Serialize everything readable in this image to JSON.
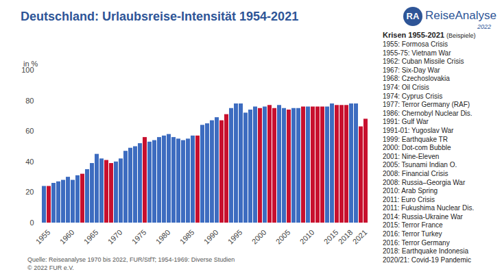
{
  "chart_data": {
    "type": "bar",
    "title": "Deutschland: Urlaubsreise-Intensität 1954-2021",
    "y_label": "in %",
    "categories": [
      null,
      "1955",
      null,
      null,
      null,
      null,
      "1960",
      null,
      null,
      null,
      null,
      "1965",
      null,
      null,
      null,
      null,
      "1970",
      null,
      null,
      null,
      null,
      "1975",
      null,
      null,
      null,
      null,
      "1980",
      null,
      null,
      null,
      null,
      "1985",
      null,
      null,
      null,
      null,
      "1990",
      null,
      null,
      null,
      null,
      "1995",
      null,
      null,
      null,
      null,
      "2000",
      null,
      null,
      null,
      null,
      "2005",
      null,
      null,
      null,
      null,
      "2010",
      null,
      null,
      null,
      null,
      "2015",
      null,
      null,
      "2018",
      null,
      null,
      "2021"
    ],
    "values": [
      24,
      24,
      26,
      27,
      28,
      30,
      28,
      31,
      32,
      35,
      39,
      45,
      42,
      41,
      39,
      40,
      42,
      47,
      49,
      50,
      52,
      56,
      53,
      54,
      56,
      57,
      58,
      56,
      55,
      54,
      55,
      57,
      57,
      64,
      65,
      67,
      69,
      67,
      71,
      75,
      78,
      78,
      72,
      74,
      76,
      75,
      76,
      77,
      75,
      77,
      75,
      74,
      75,
      75,
      76,
      76,
      76,
      76,
      76,
      76,
      78,
      77,
      77,
      77,
      78,
      78,
      63,
      68
    ],
    "colors": [
      "#3d6cc0",
      "#c8102e",
      "#3d6cc0",
      "#3d6cc0",
      "#3d6cc0",
      "#3d6cc0",
      "#3d6cc0",
      "#3d6cc0",
      "#c8102e",
      "#3d6cc0",
      "#3d6cc0",
      "#3d6cc0",
      "#3d6cc0",
      "#c8102e",
      "#c8102e",
      "#3d6cc0",
      "#3d6cc0",
      "#3d6cc0",
      "#3d6cc0",
      "#3d6cc0",
      "#3d6cc0",
      "#c8102e",
      "#3d6cc0",
      "#3d6cc0",
      "#3d6cc0",
      "#3d6cc0",
      "#3d6cc0",
      "#3d6cc0",
      "#3d6cc0",
      "#3d6cc0",
      "#3d6cc0",
      "#3d6cc0",
      "#c8102e",
      "#3d6cc0",
      "#3d6cc0",
      "#3d6cc0",
      "#3d6cc0",
      "#c8102e",
      "#c8102e",
      "#3d6cc0",
      "#3d6cc0",
      "#3d6cc0",
      "#3d6cc0",
      "#3d6cc0",
      "#3d6cc0",
      "#c8102e",
      "#3d6cc0",
      "#c8102e",
      "#c8102e",
      "#3d6cc0",
      "#3d6cc0",
      "#c8102e",
      "#3d6cc0",
      "#3d6cc0",
      "#c8102e",
      "#3d6cc0",
      "#c8102e",
      "#c8102e",
      "#c8102e",
      "#3d6cc0",
      "#3d6cc0",
      "#c8102e",
      "#c8102e",
      "#c8102e",
      "#3d6cc0",
      "#3d6cc0",
      "#c8102e",
      "#c8102e"
    ],
    "ylim": [
      0,
      100
    ],
    "yticks": [
      0,
      20,
      40,
      60,
      80,
      100
    ],
    "grid": false,
    "notes": [
      "Quelle: Reiseanalyse 1970 bis 2022, FUR/StfT; 1954-1969: Diverse Studien",
      "© 2022 FUR e.V."
    ]
  },
  "logo": {
    "badge": "RA",
    "name": "ReiseAnalyse",
    "year": "2022"
  },
  "crisis_panel": {
    "title": "Krisen 1955-2021",
    "subtitle": "(Beispiele)",
    "items": [
      "1955: Formosa Crisis",
      "1955-75: Vietnam War",
      "1962: Cuban Missile Crisis",
      "1967: Six-Day War",
      "1968: Czechoslovakia",
      "1974: Oil Crisis",
      "1974: Cyprus Crisis",
      "1977: Terror Germany (RAF)",
      "1986: Chernobyl Nuclear Dis.",
      "1991: Gulf War",
      "1991-01: Yugoslav War",
      "1999: Earthquake TR",
      "2000: Dot-com Bubble",
      "2001: Nine-Eleven",
      "2005: Tsunami Indian O.",
      "2008: Financial Crisis",
      "2008: Russia–Georgia War",
      "2010: Arab Spring",
      "2011: Euro Crisis",
      "2011: Fukushima Nuclear Dis.",
      "2014: Russia-Ukraine War",
      "2015: Terror France",
      "2016: Terror Turkey",
      "2016: Terror Germany",
      "2018: Earthquake Indonesia",
      "2020/21: Covid-19 Pandemic"
    ]
  }
}
